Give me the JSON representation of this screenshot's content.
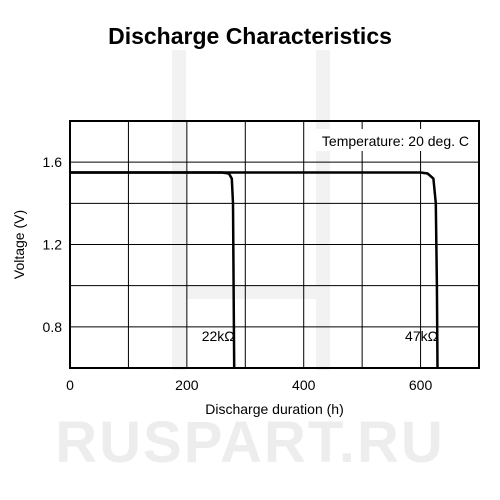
{
  "chart_data": {
    "type": "line",
    "title": "Discharge Characteristics",
    "xlabel": "Discharge duration (h)",
    "ylabel": "Voltage (V)",
    "xlim": [
      0,
      700
    ],
    "ylim": [
      0.6,
      1.8
    ],
    "x_ticks": [
      0,
      200,
      400,
      600
    ],
    "y_ticks": [
      0.8,
      1.2,
      1.6
    ],
    "x_tick_labels": [
      "0",
      "200",
      "400",
      "600"
    ],
    "y_tick_labels": [
      "0.8",
      "1.2",
      "1.6"
    ],
    "grid": true,
    "annotation": "Temperature: 20 deg. C",
    "watermark": "RUSPART.RU",
    "series": [
      {
        "name": "22kΩ",
        "color": "#000000",
        "x": [
          0,
          100,
          200,
          260,
          272,
          277,
          279,
          280,
          281
        ],
        "y": [
          1.55,
          1.55,
          1.55,
          1.55,
          1.545,
          1.52,
          1.4,
          1.0,
          0.6
        ]
      },
      {
        "name": "47kΩ",
        "color": "#000000",
        "x": [
          0,
          200,
          400,
          600,
          612,
          622,
          626,
          628,
          629
        ],
        "y": [
          1.55,
          1.55,
          1.55,
          1.55,
          1.545,
          1.52,
          1.4,
          1.0,
          0.6
        ]
      }
    ],
    "series_label_anchors": [
      {
        "x": 282,
        "y": 0.73
      },
      {
        "x": 630,
        "y": 0.73
      }
    ]
  }
}
